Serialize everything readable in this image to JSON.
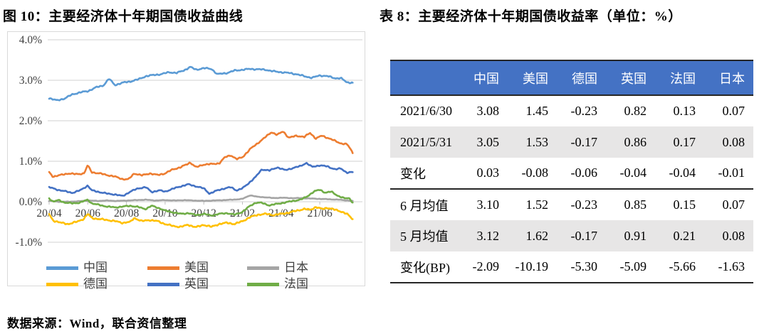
{
  "figure": {
    "title": "图 10：主要经济体十年期国债收益曲线",
    "source_note": "数据来源：Wind，联合资信整理"
  },
  "table": {
    "title": "表 8：主要经济体十年期国债收益率（单位：%）",
    "header_bg": "#4472C4",
    "header_text_color": "#FFFFFF",
    "stripe_bg": "#E7E6E6",
    "columns": [
      "",
      "中国",
      "美国",
      "德国",
      "英国",
      "法国",
      "日本"
    ],
    "rows": [
      {
        "label": "2021/6/30",
        "values": [
          "3.08",
          "1.45",
          "-0.23",
          "0.82",
          "0.13",
          "0.07"
        ],
        "shaded": false,
        "rule_below": false
      },
      {
        "label": "2021/5/31",
        "values": [
          "3.05",
          "1.53",
          "-0.17",
          "0.86",
          "0.17",
          "0.08"
        ],
        "shaded": true,
        "rule_below": false
      },
      {
        "label": "变化",
        "values": [
          "0.03",
          "-0.08",
          "-0.06",
          "-0.04",
          "-0.04",
          "-0.01"
        ],
        "shaded": false,
        "rule_below": true
      },
      {
        "label": "6 月均值",
        "values": [
          "3.10",
          "1.52",
          "-0.23",
          "0.85",
          "0.15",
          "0.07"
        ],
        "shaded": false,
        "rule_below": false
      },
      {
        "label": "5 月均值",
        "values": [
          "3.12",
          "1.62",
          "-0.17",
          "0.91",
          "0.21",
          "0.08"
        ],
        "shaded": true,
        "rule_below": false
      },
      {
        "label": "变化(BP)",
        "values": [
          "-2.09",
          "-10.19",
          "-5.30",
          "-5.09",
          "-5.66",
          "-1.63"
        ],
        "shaded": false,
        "rule_below": true
      }
    ]
  },
  "chart_data": {
    "type": "line",
    "title": "图 10：主要经济体十年期国债收益曲线",
    "y_unit": "%",
    "ylim": [
      -1.0,
      4.0
    ],
    "grid": true,
    "grid_color": "#D9D9D9",
    "tick_color": "#BFBFBF",
    "legend_position": "bottom",
    "y_ticks": [
      {
        "label": "4.0%",
        "value": 4
      },
      {
        "label": "3.0%",
        "value": 3
      },
      {
        "label": "2.0%",
        "value": 2
      },
      {
        "label": "1.0%",
        "value": 1
      },
      {
        "label": "0.0%",
        "value": 0
      },
      {
        "label": "-1.0%",
        "value": -1
      }
    ],
    "x_ticks": [
      {
        "label": "20/04",
        "month": 0
      },
      {
        "label": "20/06",
        "month": 2
      },
      {
        "label": "20/08",
        "month": 4
      },
      {
        "label": "20/10",
        "month": 6
      },
      {
        "label": "20/12",
        "month": 8
      },
      {
        "label": "21/02",
        "month": 10
      },
      {
        "label": "21/04",
        "month": 12
      },
      {
        "label": "21/06",
        "month": 14
      }
    ],
    "x_range_months": [
      0,
      15.7
    ],
    "legend_order": [
      "中国",
      "美国",
      "日本",
      "德国",
      "英国",
      "法国"
    ],
    "series": [
      {
        "name": "日本",
        "color": "#A5A5A5",
        "jitter": 0.008,
        "points": [
          [
            0,
            0.02
          ],
          [
            0.5,
            0.0
          ],
          [
            1,
            0.0
          ],
          [
            1.5,
            0.01
          ],
          [
            2,
            0.03
          ],
          [
            2.5,
            0.02
          ],
          [
            3,
            0.03
          ],
          [
            3.5,
            0.02
          ],
          [
            4,
            0.03
          ],
          [
            4.5,
            0.04
          ],
          [
            5,
            0.05
          ],
          [
            5.5,
            0.03
          ],
          [
            6,
            0.04
          ],
          [
            6.5,
            0.03
          ],
          [
            7,
            0.04
          ],
          [
            7.5,
            0.03
          ],
          [
            8,
            0.02
          ],
          [
            8.5,
            0.03
          ],
          [
            9,
            0.04
          ],
          [
            9.5,
            0.05
          ],
          [
            10,
            0.07
          ],
          [
            10.4,
            0.16
          ],
          [
            10.8,
            0.12
          ],
          [
            11.2,
            0.11
          ],
          [
            11.6,
            0.09
          ],
          [
            12,
            0.1
          ],
          [
            12.5,
            0.09
          ],
          [
            13,
            0.09
          ],
          [
            13.5,
            0.08
          ],
          [
            14,
            0.07
          ],
          [
            14.5,
            0.06
          ],
          [
            15,
            0.05
          ],
          [
            15.7,
            0.02
          ]
        ]
      },
      {
        "name": "德国",
        "color": "#FFC000",
        "jitter": 0.025,
        "points": [
          [
            0,
            -0.31
          ],
          [
            0.2,
            -0.46
          ],
          [
            0.6,
            -0.52
          ],
          [
            1,
            -0.55
          ],
          [
            1.4,
            -0.5
          ],
          [
            1.8,
            -0.42
          ],
          [
            2,
            -0.3
          ],
          [
            2.2,
            -0.4
          ],
          [
            2.6,
            -0.43
          ],
          [
            3,
            -0.45
          ],
          [
            3.4,
            -0.48
          ],
          [
            3.8,
            -0.52
          ],
          [
            4.2,
            -0.5
          ],
          [
            4.4,
            -0.4
          ],
          [
            4.8,
            -0.48
          ],
          [
            5.2,
            -0.45
          ],
          [
            5.6,
            -0.48
          ],
          [
            6,
            -0.55
          ],
          [
            6.4,
            -0.6
          ],
          [
            6.8,
            -0.62
          ],
          [
            7.2,
            -0.57
          ],
          [
            7.6,
            -0.63
          ],
          [
            8,
            -0.57
          ],
          [
            8.4,
            -0.62
          ],
          [
            8.8,
            -0.55
          ],
          [
            9.2,
            -0.52
          ],
          [
            9.6,
            -0.55
          ],
          [
            10,
            -0.48
          ],
          [
            10.4,
            -0.38
          ],
          [
            10.8,
            -0.32
          ],
          [
            11.2,
            -0.3
          ],
          [
            11.6,
            -0.33
          ],
          [
            12,
            -0.3
          ],
          [
            12.4,
            -0.27
          ],
          [
            12.8,
            -0.22
          ],
          [
            13.2,
            -0.18
          ],
          [
            13.5,
            -0.2
          ],
          [
            13.8,
            -0.13
          ],
          [
            14.1,
            -0.18
          ],
          [
            14.4,
            -0.15
          ],
          [
            14.8,
            -0.2
          ],
          [
            15.1,
            -0.24
          ],
          [
            15.4,
            -0.3
          ],
          [
            15.7,
            -0.43
          ]
        ]
      },
      {
        "name": "法国",
        "color": "#70AD47",
        "jitter": 0.02,
        "points": [
          [
            0,
            0.09
          ],
          [
            0.2,
            0.0
          ],
          [
            0.5,
            0.04
          ],
          [
            0.8,
            -0.02
          ],
          [
            1.2,
            -0.04
          ],
          [
            1.6,
            -0.02
          ],
          [
            2,
            0.05
          ],
          [
            2.2,
            -0.04
          ],
          [
            2.6,
            -0.08
          ],
          [
            3,
            -0.12
          ],
          [
            3.4,
            -0.14
          ],
          [
            3.8,
            -0.12
          ],
          [
            4.2,
            -0.1
          ],
          [
            4.6,
            -0.13
          ],
          [
            5,
            -0.18
          ],
          [
            5.3,
            -0.1
          ],
          [
            5.7,
            -0.16
          ],
          [
            6,
            -0.22
          ],
          [
            6.4,
            -0.26
          ],
          [
            6.8,
            -0.3
          ],
          [
            7.2,
            -0.28
          ],
          [
            7.6,
            -0.33
          ],
          [
            8,
            -0.3
          ],
          [
            8.4,
            -0.34
          ],
          [
            8.8,
            -0.3
          ],
          [
            9.2,
            -0.28
          ],
          [
            9.6,
            -0.32
          ],
          [
            10,
            -0.25
          ],
          [
            10.4,
            -0.1
          ],
          [
            10.7,
            -0.02
          ],
          [
            11,
            -0.03
          ],
          [
            11.4,
            -0.09
          ],
          [
            11.8,
            -0.05
          ],
          [
            12.2,
            -0.02
          ],
          [
            12.6,
            0.02
          ],
          [
            13,
            0.05
          ],
          [
            13.3,
            0.12
          ],
          [
            13.7,
            0.25
          ],
          [
            14,
            0.3
          ],
          [
            14.3,
            0.22
          ],
          [
            14.6,
            0.25
          ],
          [
            15,
            0.13
          ],
          [
            15.3,
            0.08
          ],
          [
            15.5,
            0.1
          ],
          [
            15.7,
            -0.02
          ]
        ]
      },
      {
        "name": "英国",
        "color": "#4472C4",
        "jitter": 0.02,
        "points": [
          [
            0,
            0.36
          ],
          [
            0.4,
            0.3
          ],
          [
            0.8,
            0.26
          ],
          [
            1.2,
            0.22
          ],
          [
            1.6,
            0.28
          ],
          [
            2,
            0.4
          ],
          [
            2.2,
            0.28
          ],
          [
            2.6,
            0.24
          ],
          [
            3,
            0.2
          ],
          [
            3.4,
            0.18
          ],
          [
            3.8,
            0.14
          ],
          [
            4.2,
            0.25
          ],
          [
            4.6,
            0.33
          ],
          [
            5,
            0.36
          ],
          [
            5.3,
            0.24
          ],
          [
            5.7,
            0.28
          ],
          [
            6,
            0.25
          ],
          [
            6.4,
            0.32
          ],
          [
            6.8,
            0.38
          ],
          [
            7.2,
            0.43
          ],
          [
            7.6,
            0.38
          ],
          [
            8,
            0.33
          ],
          [
            8.3,
            0.2
          ],
          [
            8.7,
            0.28
          ],
          [
            9,
            0.32
          ],
          [
            9.4,
            0.36
          ],
          [
            9.7,
            0.28
          ],
          [
            10,
            0.33
          ],
          [
            10.3,
            0.45
          ],
          [
            10.7,
            0.62
          ],
          [
            11,
            0.8
          ],
          [
            11.4,
            0.77
          ],
          [
            11.8,
            0.85
          ],
          [
            12.2,
            0.78
          ],
          [
            12.6,
            0.83
          ],
          [
            13,
            0.88
          ],
          [
            13.3,
            0.96
          ],
          [
            13.6,
            0.86
          ],
          [
            14,
            0.9
          ],
          [
            14.4,
            0.87
          ],
          [
            14.8,
            0.8
          ],
          [
            15.1,
            0.82
          ],
          [
            15.4,
            0.72
          ],
          [
            15.7,
            0.73
          ]
        ]
      },
      {
        "name": "美国",
        "color": "#ED7D31",
        "jitter": 0.022,
        "points": [
          [
            0,
            0.73
          ],
          [
            0.2,
            0.62
          ],
          [
            0.6,
            0.66
          ],
          [
            1,
            0.7
          ],
          [
            1.4,
            0.68
          ],
          [
            1.8,
            0.7
          ],
          [
            2,
            0.9
          ],
          [
            2.2,
            0.73
          ],
          [
            2.6,
            0.7
          ],
          [
            3,
            0.66
          ],
          [
            3.4,
            0.62
          ],
          [
            3.8,
            0.56
          ],
          [
            4.1,
            0.55
          ],
          [
            4.4,
            0.7
          ],
          [
            4.8,
            0.65
          ],
          [
            5.2,
            0.7
          ],
          [
            5.6,
            0.66
          ],
          [
            6,
            0.7
          ],
          [
            6.4,
            0.8
          ],
          [
            6.8,
            0.85
          ],
          [
            7.1,
            0.92
          ],
          [
            7.3,
            0.97
          ],
          [
            7.6,
            0.85
          ],
          [
            8,
            0.92
          ],
          [
            8.4,
            0.93
          ],
          [
            8.8,
            0.95
          ],
          [
            9.1,
            1.1
          ],
          [
            9.4,
            1.15
          ],
          [
            9.7,
            1.05
          ],
          [
            10,
            1.1
          ],
          [
            10.4,
            1.3
          ],
          [
            10.8,
            1.45
          ],
          [
            11.2,
            1.6
          ],
          [
            11.5,
            1.72
          ],
          [
            11.8,
            1.65
          ],
          [
            12.1,
            1.74
          ],
          [
            12.4,
            1.58
          ],
          [
            12.8,
            1.63
          ],
          [
            13.2,
            1.6
          ],
          [
            13.5,
            1.7
          ],
          [
            13.8,
            1.56
          ],
          [
            14.1,
            1.63
          ],
          [
            14.4,
            1.58
          ],
          [
            14.8,
            1.5
          ],
          [
            15.1,
            1.44
          ],
          [
            15.4,
            1.42
          ],
          [
            15.6,
            1.3
          ],
          [
            15.7,
            1.2
          ]
        ]
      },
      {
        "name": "中国",
        "color": "#5B9BD5",
        "jitter": 0.022,
        "points": [
          [
            0,
            2.56
          ],
          [
            0.4,
            2.5
          ],
          [
            0.8,
            2.55
          ],
          [
            1.2,
            2.65
          ],
          [
            1.6,
            2.7
          ],
          [
            2,
            2.73
          ],
          [
            2.4,
            2.82
          ],
          [
            2.8,
            2.87
          ],
          [
            3.1,
            3.04
          ],
          [
            3.4,
            2.88
          ],
          [
            3.8,
            2.94
          ],
          [
            4.2,
            2.97
          ],
          [
            4.6,
            3.02
          ],
          [
            5,
            3.1
          ],
          [
            5.4,
            3.13
          ],
          [
            5.8,
            3.15
          ],
          [
            6.2,
            3.2
          ],
          [
            6.6,
            3.18
          ],
          [
            7,
            3.25
          ],
          [
            7.3,
            3.33
          ],
          [
            7.6,
            3.26
          ],
          [
            8,
            3.3
          ],
          [
            8.4,
            3.28
          ],
          [
            8.7,
            3.15
          ],
          [
            9.2,
            3.18
          ],
          [
            9.6,
            3.24
          ],
          [
            10,
            3.26
          ],
          [
            10.4,
            3.28
          ],
          [
            10.8,
            3.27
          ],
          [
            11.2,
            3.26
          ],
          [
            11.6,
            3.22
          ],
          [
            12,
            3.2
          ],
          [
            12.4,
            3.18
          ],
          [
            12.8,
            3.15
          ],
          [
            13.2,
            3.1
          ],
          [
            13.6,
            3.06
          ],
          [
            14,
            3.12
          ],
          [
            14.4,
            3.1
          ],
          [
            14.8,
            3.05
          ],
          [
            15.1,
            3.05
          ],
          [
            15.4,
            2.95
          ],
          [
            15.7,
            2.94
          ]
        ]
      }
    ]
  }
}
